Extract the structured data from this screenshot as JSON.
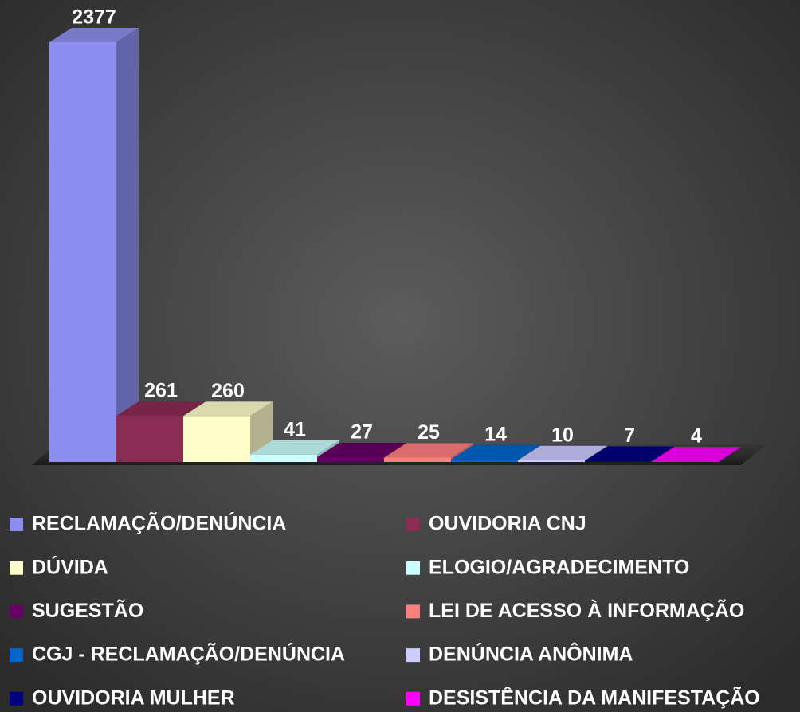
{
  "chart_data": {
    "type": "bar3d",
    "categories": [
      "RECLAMAÇÃO/DENÚNCIA",
      "OUVIDORIA CNJ",
      "DÚVIDA",
      "ELOGIO/AGRADECIMENTO",
      "SUGESTÃO",
      "LEI DE ACESSO À INFORMAÇÃO",
      "CGJ - RECLAMAÇÃO/DENÚNCIA",
      "DENÚNCIA ANÔNIMA",
      "OUVIDORIA MULHER",
      "DESISTÊNCIA DA MANIFESTAÇÃO"
    ],
    "values": [
      2377,
      261,
      260,
      41,
      27,
      25,
      14,
      10,
      7,
      4
    ],
    "colors": [
      "#8e8ef0",
      "#8b2c52",
      "#ffffcc",
      "#ccffff",
      "#660066",
      "#ff7f7f",
      "#0066cc",
      "#ccccff",
      "#000080",
      "#ff00ff"
    ]
  }
}
